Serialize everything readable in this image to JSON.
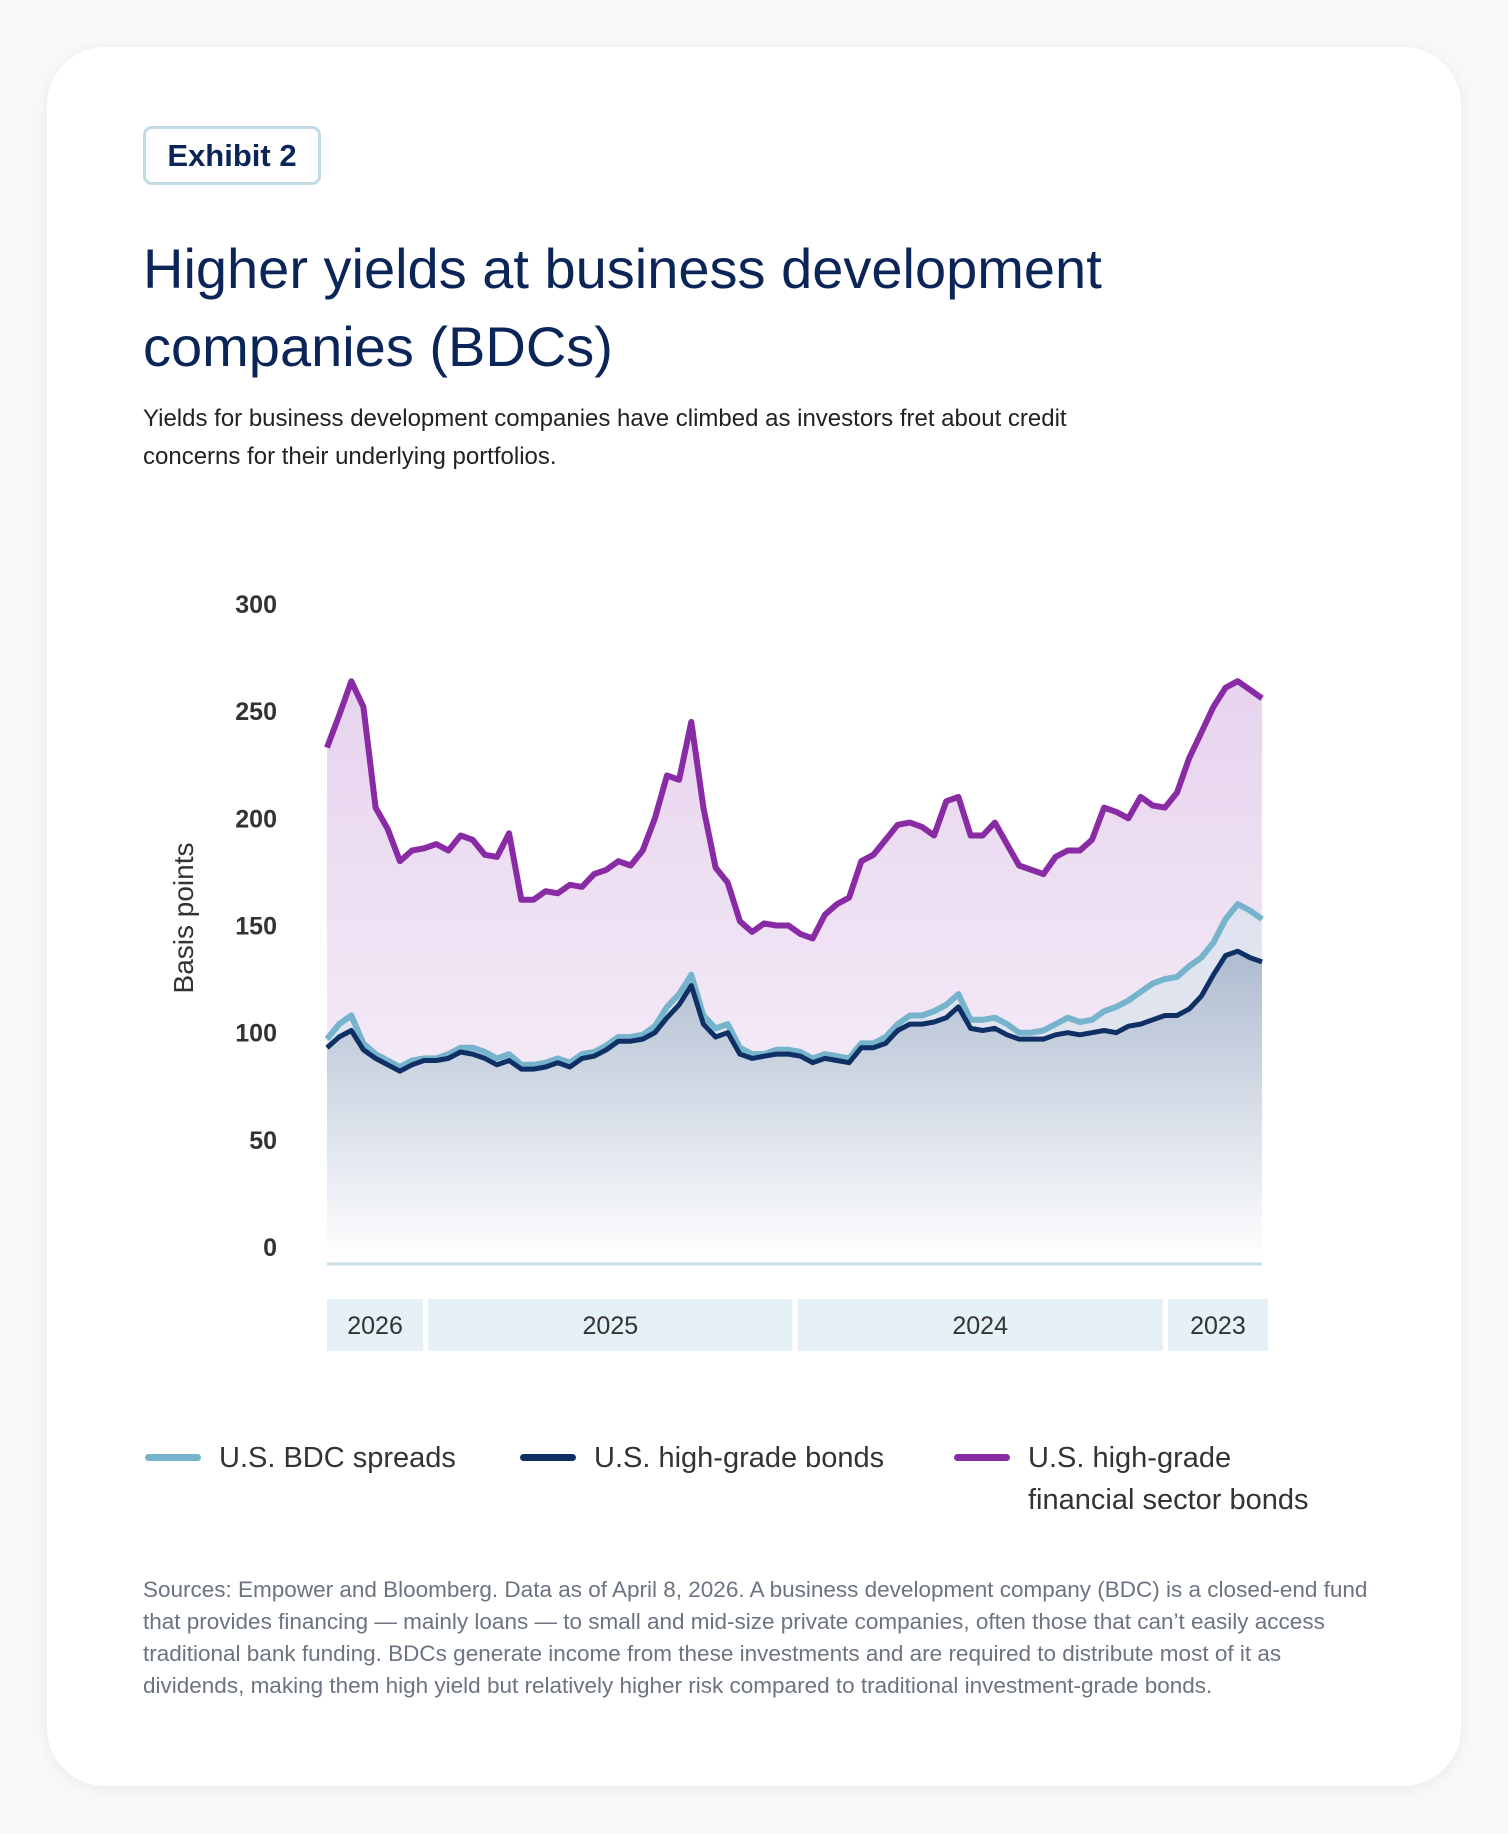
{
  "badge": "Exhibit 2",
  "title": "Higher yields at business development companies (BDCs)",
  "subtitle": "Yields for business development companies have climbed as investors fret about credit concerns for their underlying portfolios.",
  "footnote": "Sources: Empower and Bloomberg. Data as of April 8, 2026. A business development company (BDC) is a closed-end fund that provides financing — mainly loans — to small and mid-size private companies, often those that can’t easily access traditional bank funding. BDCs generate income from these investments and are required to distribute most of it as dividends, making them high yield but relatively higher risk compared to traditional investment-grade bonds.",
  "colors": {
    "bdc": "#76b3cc",
    "high_grade": "#0f3064",
    "financial": "#8a2ba6",
    "title": "#0b2559"
  },
  "chart_data": {
    "type": "line",
    "ylabel": "Basis points",
    "ylim": [
      0,
      300
    ],
    "yticks": [
      "0",
      "50",
      "100",
      "150",
      "200",
      "250",
      "300"
    ],
    "x_axis": "time, reversed (newest on left)",
    "xlim": [
      "2026-04-08",
      "2023-09-27"
    ],
    "year_labels": [
      "2026",
      "2025",
      "2024",
      "2023"
    ],
    "grid": false,
    "legend_placement": "bottom",
    "x": [
      "2026-04-08",
      "2026-03-27",
      "2026-03-15",
      "2026-03-03",
      "2026-02-19",
      "2026-02-07",
      "2026-01-26",
      "2026-01-14",
      "2026-01-02",
      "2025-12-21",
      "2025-12-09",
      "2025-11-27",
      "2025-11-15",
      "2025-11-03",
      "2025-10-22",
      "2025-10-10",
      "2025-09-28",
      "2025-09-16",
      "2025-09-04",
      "2025-08-23",
      "2025-08-11",
      "2025-07-30",
      "2025-07-18",
      "2025-07-06",
      "2025-06-24",
      "2025-06-12",
      "2025-05-31",
      "2025-05-19",
      "2025-05-07",
      "2025-04-25",
      "2025-04-13",
      "2025-04-01",
      "2025-03-20",
      "2025-03-08",
      "2025-02-24",
      "2025-02-12",
      "2025-01-31",
      "2025-01-19",
      "2025-01-07",
      "2024-12-26",
      "2024-12-14",
      "2024-12-02",
      "2024-11-20",
      "2024-11-08",
      "2024-10-27",
      "2024-10-15",
      "2024-10-03",
      "2024-09-21",
      "2024-09-09",
      "2024-08-28",
      "2024-08-16",
      "2024-08-04",
      "2024-07-23",
      "2024-07-11",
      "2024-06-29",
      "2024-06-17",
      "2024-06-05",
      "2024-05-24",
      "2024-05-12",
      "2024-04-30",
      "2024-04-18",
      "2024-04-06",
      "2024-03-25",
      "2024-03-13",
      "2024-03-01",
      "2024-02-18",
      "2024-02-06",
      "2024-01-25",
      "2024-01-13",
      "2024-01-01",
      "2023-12-20",
      "2023-12-08",
      "2023-11-26",
      "2023-11-14",
      "2023-11-02",
      "2023-10-21",
      "2023-10-09",
      "2023-09-27"
    ],
    "series": [
      {
        "name": "U.S. BDC spreads",
        "key": "bdc",
        "values": [
          97,
          104,
          108,
          95,
          90,
          87,
          84,
          87,
          88,
          88,
          90,
          93,
          93,
          91,
          88,
          90,
          85,
          85,
          86,
          88,
          86,
          90,
          91,
          94,
          98,
          98,
          99,
          103,
          112,
          118,
          127,
          108,
          102,
          104,
          93,
          90,
          90,
          92,
          92,
          91,
          88,
          90,
          89,
          88,
          95,
          95,
          98,
          104,
          108,
          108,
          110,
          113,
          118,
          106,
          106,
          107,
          104,
          100,
          100,
          101,
          104,
          107,
          105,
          106,
          110,
          112,
          115,
          119,
          123,
          125,
          126,
          131,
          135,
          142,
          153,
          160,
          157,
          153
        ]
      },
      {
        "name": "U.S. high-grade bonds",
        "key": "high_grade",
        "values": [
          93,
          98,
          101,
          92,
          88,
          85,
          82,
          85,
          87,
          87,
          88,
          91,
          90,
          88,
          85,
          87,
          83,
          83,
          84,
          86,
          84,
          88,
          89,
          92,
          96,
          96,
          97,
          100,
          107,
          113,
          122,
          104,
          98,
          100,
          90,
          88,
          89,
          90,
          90,
          89,
          86,
          88,
          87,
          86,
          93,
          93,
          95,
          101,
          104,
          104,
          105,
          107,
          112,
          102,
          101,
          102,
          99,
          97,
          97,
          97,
          99,
          100,
          99,
          100,
          101,
          100,
          103,
          104,
          106,
          108,
          108,
          111,
          117,
          127,
          136,
          138,
          135,
          133
        ]
      },
      {
        "name": "U.S. high-grade financial sector bonds",
        "key": "financial",
        "values": [
          233,
          248,
          264,
          252,
          205,
          195,
          180,
          185,
          186,
          188,
          185,
          192,
          190,
          183,
          182,
          193,
          162,
          162,
          166,
          165,
          169,
          168,
          174,
          176,
          180,
          178,
          185,
          200,
          220,
          218,
          245,
          205,
          177,
          170,
          152,
          147,
          151,
          150,
          150,
          146,
          144,
          155,
          160,
          163,
          180,
          183,
          190,
          197,
          198,
          196,
          192,
          208,
          210,
          192,
          192,
          198,
          188,
          178,
          176,
          174,
          182,
          185,
          185,
          190,
          205,
          203,
          200,
          210,
          206,
          205,
          212,
          228,
          240,
          252,
          261,
          264,
          260,
          256
        ]
      }
    ]
  },
  "legend": [
    {
      "line1": "U.S. BDC spreads",
      "line2": ""
    },
    {
      "line1": "U.S. high-grade bonds",
      "line2": ""
    },
    {
      "line1": "U.S. high-grade",
      "line2": "financial sector bonds"
    }
  ]
}
